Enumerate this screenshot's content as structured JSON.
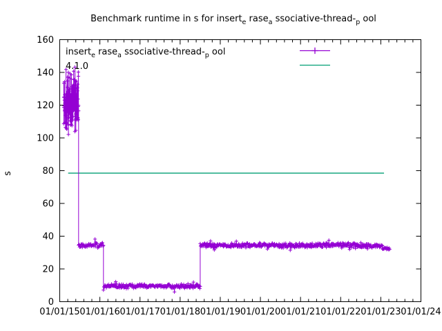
{
  "chart_data": {
    "type": "line",
    "title_plain": "Benchmark runtime in s for insert_erase_associative-thread-pool",
    "title_parts": [
      {
        "t": "Benchmark runtime in s for insert"
      },
      {
        "t": "e",
        "sub": true
      },
      {
        "t": " rase"
      },
      {
        "t": "a",
        "sub": true
      },
      {
        "t": " ssociative-thread-"
      },
      {
        "t": "p",
        "sub": true
      },
      {
        "t": " ool"
      }
    ],
    "ylabel": "s",
    "ylim": [
      0,
      160
    ],
    "ytick_step": 20,
    "yticks": [
      0,
      20,
      40,
      60,
      80,
      100,
      120,
      140,
      160
    ],
    "xtick_labels": [
      "01/01/15",
      "01/01/16",
      "01/01/17",
      "01/01/18",
      "01/01/19",
      "01/01/20",
      "01/01/21",
      "01/01/22",
      "01/01/23",
      "01/01/24"
    ],
    "x_years_span": 9,
    "x_minor_ticks_per_year": 4,
    "grid": false,
    "legend_position": "top-left-inside",
    "series": [
      {
        "name_plain": "insert_erase_associative-thread-pool",
        "name_parts": [
          {
            "t": "insert"
          },
          {
            "t": "e",
            "sub": true
          },
          {
            "t": " rase"
          },
          {
            "t": "a",
            "sub": true
          },
          {
            "t": " ssociative-thread-"
          },
          {
            "t": "p",
            "sub": true
          },
          {
            "t": " ool"
          }
        ],
        "color": "#9400d3",
        "style": "linespoints",
        "marker": "plus",
        "segments": [
          {
            "t_start": 0.1,
            "t_end": 0.47,
            "base": 123,
            "spread": 23,
            "clamp_min": 100,
            "clamp_max": 146,
            "points": 160,
            "note": "initial spike cluster ~100-146 s, early-mid 2015"
          },
          {
            "t_start": 0.47,
            "t_end": 1.09,
            "base": 34.5,
            "spread": 1.8,
            "points": 48,
            "note": "plateau ~35 s, mid 2015 - early 2016"
          },
          {
            "t_start": 1.09,
            "t_end": 3.5,
            "base": 9.5,
            "spread": 1.6,
            "points": 230,
            "note": "plateau ~10 s, early 2016 - mid 2018"
          },
          {
            "t_start": 3.5,
            "t_end": 8.04,
            "base": 34.5,
            "spread": 1.8,
            "points": 440,
            "note": "plateau ~35 s, mid 2018 - early 2023"
          },
          {
            "t_start": 8.04,
            "t_end": 8.22,
            "base": 32.5,
            "spread": 1.2,
            "points": 18,
            "note": "slightly lower ~33 s at end, early 2023"
          }
        ]
      },
      {
        "name_plain": "4.1.0",
        "color": "#009e73",
        "style": "hline",
        "value": 78.5,
        "t_start": 0.21,
        "t_end": 8.08,
        "note": "reference horizontal line at ~78.5 s"
      }
    ]
  }
}
